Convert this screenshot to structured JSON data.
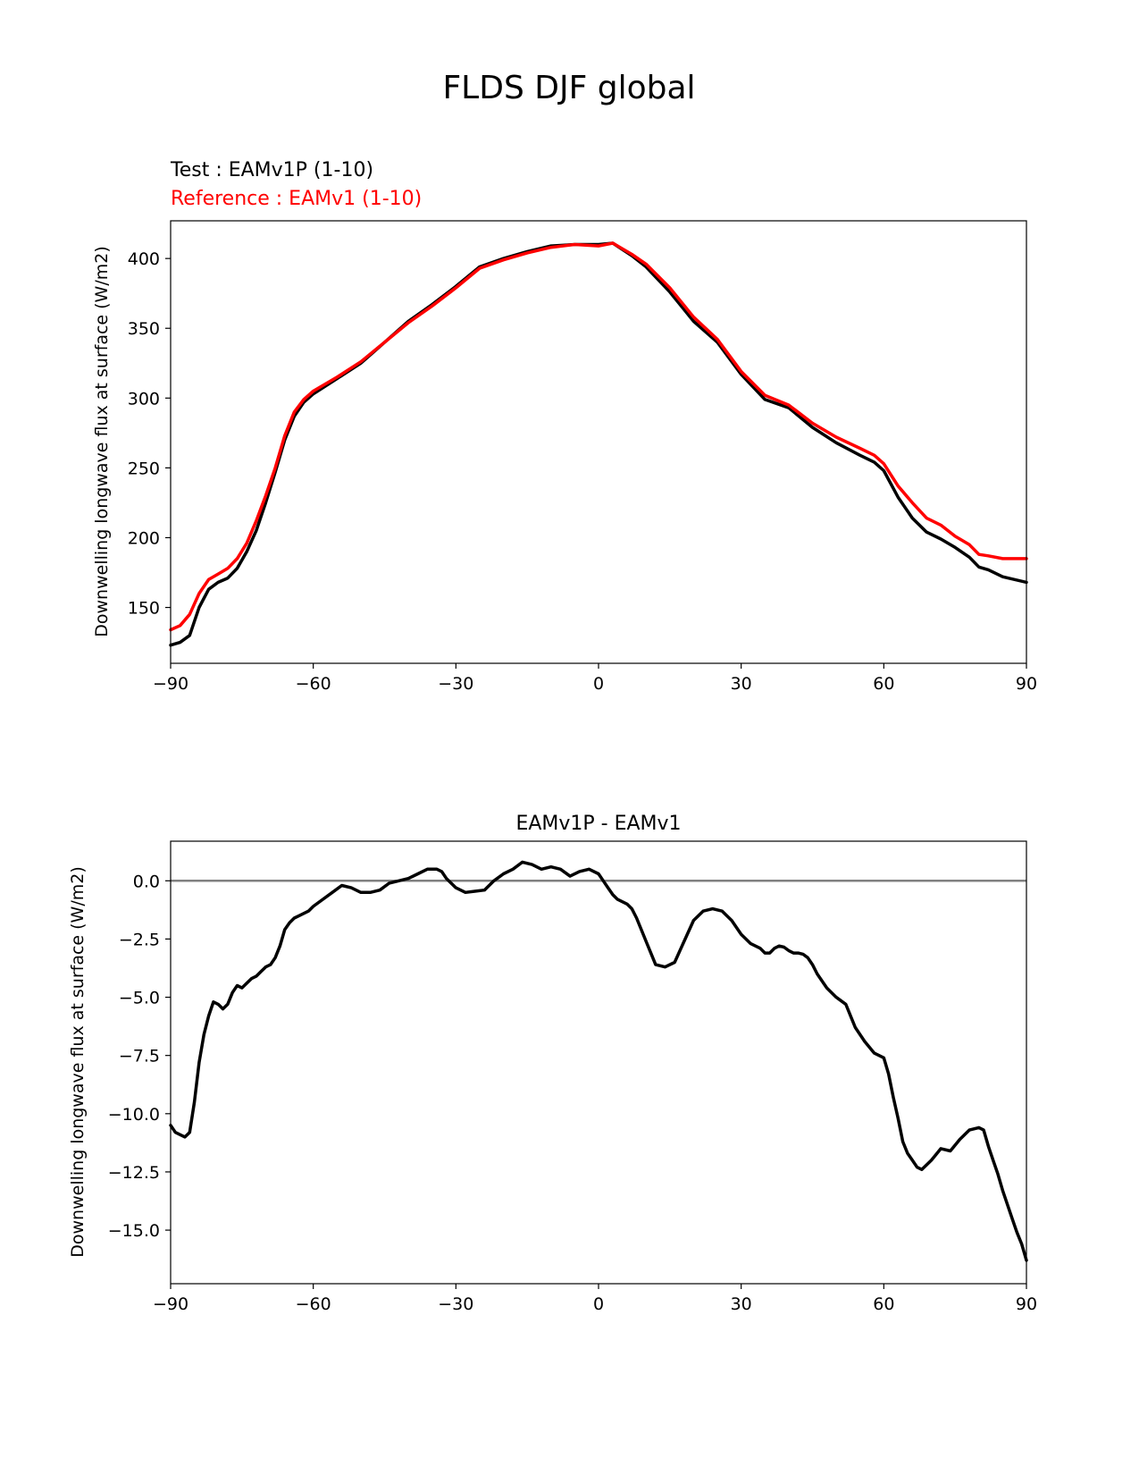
{
  "figure": {
    "title": "FLDS DJF global"
  },
  "colors": {
    "test": "#000000",
    "reference": "#ff0000",
    "zero_line": "#808080"
  },
  "chart_data": [
    {
      "type": "line",
      "test_label": "Test : EAMv1P (1-10)",
      "reference_label": "Reference : EAMv1 (1-10)",
      "ylabel": "Downwelling longwave flux at surface (W/m2)",
      "xlim": [
        -90,
        90
      ],
      "ylim": [
        110,
        427
      ],
      "xticks": [
        -90,
        -60,
        -30,
        0,
        30,
        60,
        90
      ],
      "xtick_labels": [
        "−90",
        "−60",
        "−30",
        "0",
        "30",
        "60",
        "90"
      ],
      "yticks": [
        150,
        200,
        250,
        300,
        350,
        400
      ],
      "ytick_labels": [
        "150",
        "200",
        "250",
        "300",
        "350",
        "400"
      ],
      "series": [
        {
          "key": "test",
          "x": [
            -90,
            -88,
            -86,
            -84,
            -82,
            -80,
            -78,
            -76,
            -74,
            -72,
            -70,
            -68,
            -66,
            -64,
            -62,
            -60,
            -55,
            -50,
            -45,
            -40,
            -35,
            -30,
            -25,
            -20,
            -15,
            -10,
            -5,
            0,
            3,
            7,
            10,
            15,
            20,
            25,
            30,
            35,
            40,
            45,
            50,
            55,
            58,
            60,
            63,
            66,
            69,
            72,
            75,
            78,
            80,
            82,
            85,
            90
          ],
          "y": [
            123,
            125,
            130,
            150,
            163,
            168,
            171,
            178,
            190,
            205,
            225,
            247,
            270,
            287,
            297,
            303,
            314,
            325,
            340,
            355,
            367,
            380,
            394,
            400,
            405,
            409,
            410,
            410,
            411,
            402,
            394,
            376,
            355,
            340,
            317,
            299,
            293,
            279,
            268,
            259,
            254,
            248,
            229,
            214,
            204,
            199,
            193,
            186,
            179,
            177,
            172,
            168
          ]
        },
        {
          "key": "reference",
          "x": [
            -90,
            -88,
            -86,
            -84,
            -82,
            -80,
            -78,
            -76,
            -74,
            -72,
            -70,
            -68,
            -66,
            -64,
            -62,
            -60,
            -55,
            -50,
            -45,
            -40,
            -35,
            -30,
            -25,
            -20,
            -15,
            -10,
            -5,
            0,
            3,
            7,
            10,
            15,
            20,
            25,
            30,
            35,
            40,
            45,
            50,
            55,
            58,
            60,
            63,
            66,
            69,
            72,
            75,
            78,
            80,
            82,
            85,
            90
          ],
          "y": [
            134,
            137,
            145,
            160,
            170,
            174,
            178,
            185,
            196,
            212,
            230,
            250,
            273,
            290,
            299,
            305,
            315,
            326,
            340,
            354,
            366,
            379,
            393,
            399,
            404,
            408,
            410,
            409,
            411,
            403,
            396,
            379,
            358,
            342,
            319,
            302,
            295,
            282,
            272,
            264,
            259,
            253,
            237,
            225,
            214,
            209,
            201,
            195,
            188,
            187,
            185,
            185
          ]
        }
      ]
    },
    {
      "type": "line",
      "title": "EAMv1P - EAMv1",
      "ylabel": "Downwelling longwave flux at surface (W/m2)",
      "xlim": [
        -90,
        90
      ],
      "ylim": [
        -17.3,
        1.7
      ],
      "xticks": [
        -90,
        -60,
        -30,
        0,
        30,
        60,
        90
      ],
      "xtick_labels": [
        "−90",
        "−60",
        "−30",
        "0",
        "30",
        "60",
        "90"
      ],
      "yticks": [
        0,
        -2.5,
        -5,
        -7.5,
        -10,
        -12.5,
        -15
      ],
      "ytick_labels": [
        "0.0",
        "−2.5",
        "−5.0",
        "−7.5",
        "−10.0",
        "−12.5",
        "−15.0"
      ],
      "zero_line": 0,
      "series": [
        {
          "key": "test",
          "x": [
            -90,
            -89,
            -88,
            -87,
            -86,
            -85,
            -84,
            -83,
            -82,
            -81,
            -80,
            -79,
            -78,
            -77,
            -76,
            -75,
            -74,
            -73,
            -72,
            -71,
            -70,
            -69,
            -68,
            -67,
            -66,
            -65,
            -64,
            -63,
            -62,
            -61,
            -60,
            -58,
            -56,
            -54,
            -52,
            -50,
            -48,
            -46,
            -44,
            -42,
            -40,
            -38,
            -36,
            -34,
            -33,
            -32,
            -30,
            -28,
            -26,
            -24,
            -22,
            -20,
            -18,
            -16,
            -14,
            -12,
            -10,
            -8,
            -6,
            -4,
            -2,
            0,
            1,
            2,
            3,
            4,
            5,
            6,
            7,
            8,
            10,
            12,
            14,
            16,
            18,
            20,
            22,
            24,
            26,
            28,
            30,
            32,
            34,
            35,
            36,
            37,
            38,
            39,
            40,
            41,
            42,
            43,
            44,
            45,
            46,
            48,
            50,
            52,
            54,
            56,
            58,
            59,
            60,
            61,
            62,
            63,
            64,
            65,
            66,
            67,
            68,
            70,
            72,
            74,
            76,
            78,
            80,
            81,
            82,
            83,
            84,
            85,
            86,
            87,
            88,
            89,
            90
          ],
          "y": [
            -10.5,
            -10.8,
            -10.9,
            -11.0,
            -10.8,
            -9.5,
            -7.8,
            -6.6,
            -5.8,
            -5.2,
            -5.3,
            -5.5,
            -5.3,
            -4.8,
            -4.5,
            -4.6,
            -4.4,
            -4.2,
            -4.1,
            -3.9,
            -3.7,
            -3.6,
            -3.3,
            -2.8,
            -2.1,
            -1.8,
            -1.6,
            -1.5,
            -1.4,
            -1.3,
            -1.1,
            -0.8,
            -0.5,
            -0.2,
            -0.3,
            -0.5,
            -0.5,
            -0.4,
            -0.1,
            0.0,
            0.1,
            0.3,
            0.5,
            0.5,
            0.4,
            0.1,
            -0.3,
            -0.5,
            -0.45,
            -0.4,
            0.0,
            0.3,
            0.5,
            0.8,
            0.7,
            0.5,
            0.6,
            0.5,
            0.2,
            0.4,
            0.5,
            0.3,
            0.0,
            -0.3,
            -0.6,
            -0.8,
            -0.9,
            -1.0,
            -1.2,
            -1.6,
            -2.6,
            -3.6,
            -3.7,
            -3.5,
            -2.6,
            -1.7,
            -1.3,
            -1.2,
            -1.3,
            -1.7,
            -2.3,
            -2.7,
            -2.9,
            -3.1,
            -3.1,
            -2.9,
            -2.8,
            -2.85,
            -3.0,
            -3.1,
            -3.1,
            -3.15,
            -3.3,
            -3.6,
            -4.0,
            -4.6,
            -5.0,
            -5.3,
            -6.3,
            -6.9,
            -7.4,
            -7.5,
            -7.6,
            -8.3,
            -9.3,
            -10.2,
            -11.2,
            -11.7,
            -12.0,
            -12.3,
            -12.4,
            -12.0,
            -11.5,
            -11.6,
            -11.1,
            -10.7,
            -10.6,
            -10.7,
            -11.4,
            -12.0,
            -12.6,
            -13.3,
            -13.9,
            -14.5,
            -15.1,
            -15.6,
            -16.3
          ]
        }
      ]
    }
  ]
}
